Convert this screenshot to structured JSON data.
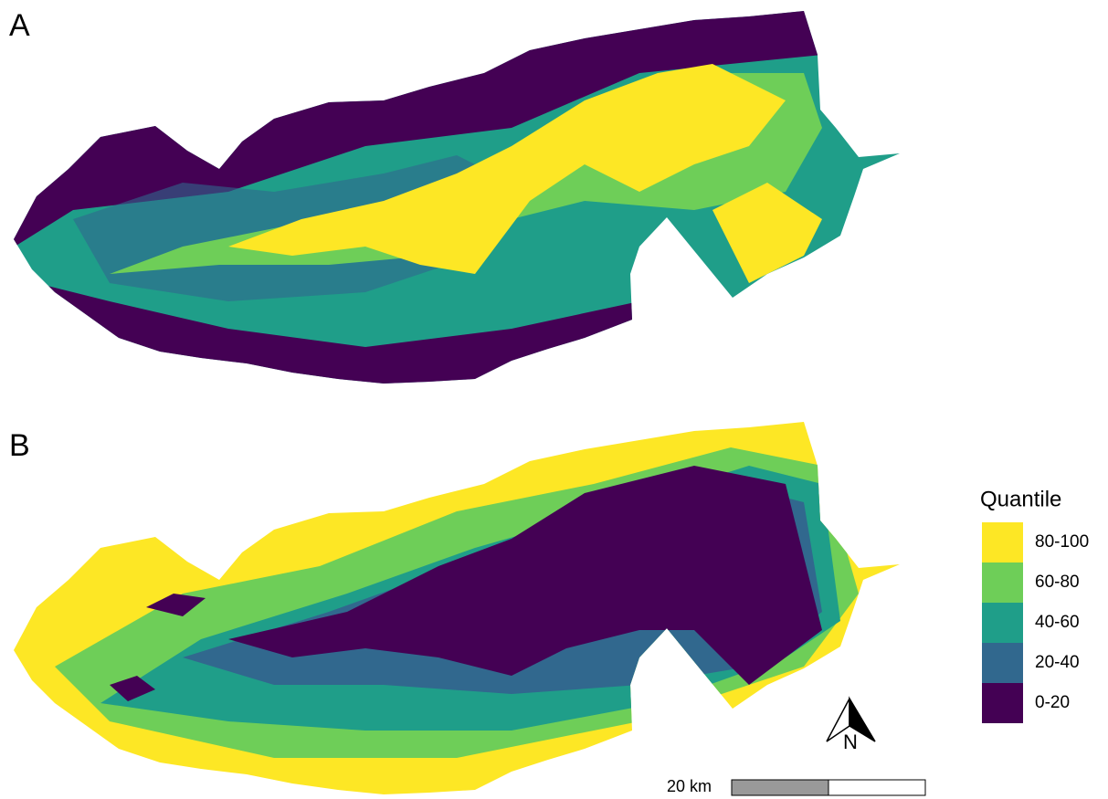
{
  "panels": [
    {
      "label": "A"
    },
    {
      "label": "B"
    }
  ],
  "legend": {
    "title": "Quantile",
    "items": [
      {
        "label": "80-100",
        "color": "#fde725"
      },
      {
        "label": "60-80",
        "color": "#6ece58"
      },
      {
        "label": "40-60",
        "color": "#1f9e89"
      },
      {
        "label": "20-40",
        "color": "#31688e"
      },
      {
        "label": "0-20",
        "color": "#440154"
      }
    ]
  },
  "north_arrow": {
    "label": "N"
  },
  "scale_bar": {
    "label": "20 km"
  }
}
